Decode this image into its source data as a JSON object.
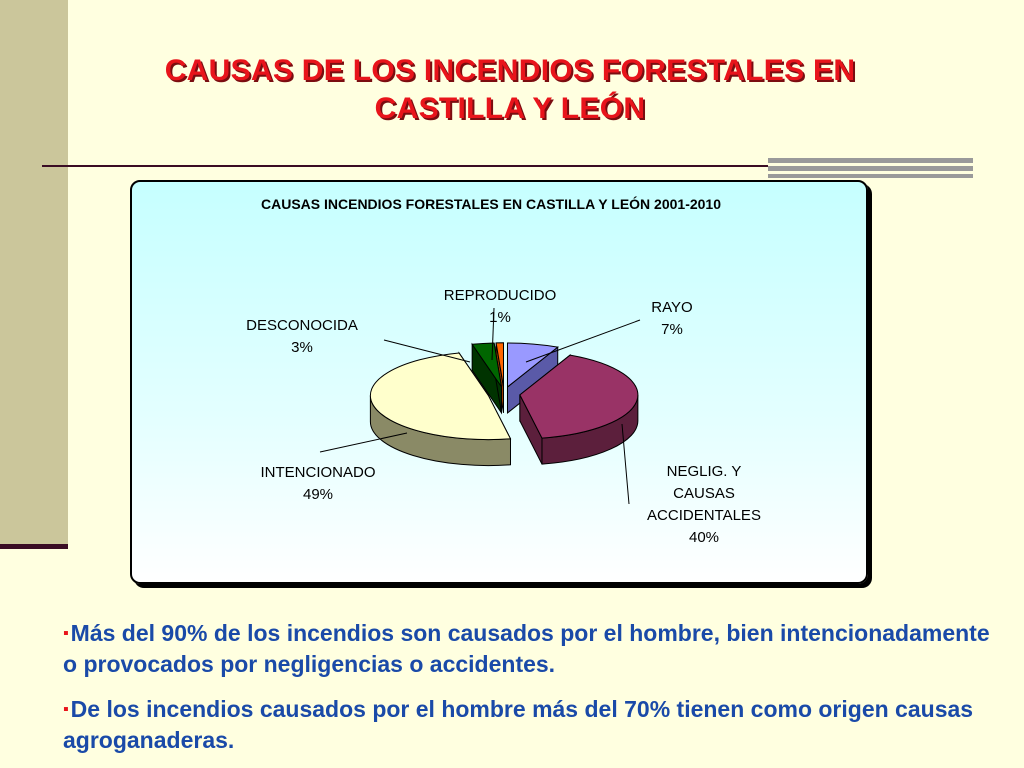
{
  "slide": {
    "title_line1": "CAUSAS DE LOS INCENDIOS FORESTALES EN",
    "title_line2": "CASTILLA Y LEÓN",
    "bullets": [
      "Más del 90% de los incendios son causados por el hombre, bien intencionadamente o provocados por negligencias o accidentes.",
      "De los incendios causados por el hombre más del 70% tienen como origen causas agroganaderas."
    ],
    "bullet_marker": "▪"
  },
  "colors": {
    "background": "#ffffe0",
    "title": "#e8141b",
    "bullet_text": "#1a4aa8",
    "bullet_marker": "#e8141b",
    "sidebar": "#cbc69b"
  },
  "chart_data": {
    "type": "pie",
    "title": "CAUSAS INCENDIOS FORESTALES EN CASTILLA Y LEÓN 2001-2010",
    "style": "3d-exploded",
    "slices": [
      {
        "name": "RAYO",
        "value": 7,
        "label_lines": [
          "RAYO",
          "7%"
        ],
        "color": "#9999ff",
        "side": "#5a5aa8"
      },
      {
        "name": "NEGLIG. Y CAUSAS ACCIDENTALES",
        "value": 40,
        "label_lines": [
          "NEGLIG. Y",
          "CAUSAS",
          "ACCIDENTALES",
          "40%"
        ],
        "color": "#993366",
        "side": "#5c1f3c"
      },
      {
        "name": "INTENCIONADO",
        "value": 49,
        "label_lines": [
          "INTENCIONADO",
          "49%"
        ],
        "color": "#ffffcc",
        "side": "#8a8a66"
      },
      {
        "name": "DESCONOCIDA",
        "value": 3,
        "label_lines": [
          "DESCONOCIDA",
          "3%"
        ],
        "color": "#006600",
        "side": "#003300"
      },
      {
        "name": "REPRODUCIDO",
        "value": 1,
        "label_lines": [
          "REPRODUCIDO",
          "1%"
        ],
        "color": "#ff6600",
        "side": "#993d00"
      }
    ]
  }
}
